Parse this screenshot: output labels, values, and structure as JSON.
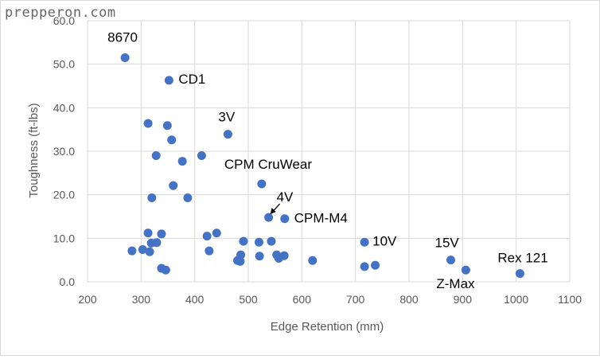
{
  "watermark": "prepperon.com",
  "chart_data": {
    "type": "scatter",
    "title": "",
    "xlabel": "Edge Retention (mm)",
    "ylabel": "Toughness (ft-lbs)",
    "xlim": [
      200,
      1100
    ],
    "ylim": [
      0,
      60
    ],
    "x_ticks": [
      "200",
      "300",
      "400",
      "500",
      "600",
      "700",
      "800",
      "900",
      "1000",
      "1100"
    ],
    "y_ticks": [
      "0.0",
      "10.0",
      "20.0",
      "30.0",
      "40.0",
      "50.0",
      "60.0"
    ],
    "grid": true,
    "legend": "none",
    "marker_color": "#4472c4",
    "points": [
      {
        "x": 270,
        "y": 51.5,
        "label": "8670"
      },
      {
        "x": 352,
        "y": 46.3,
        "label": "CD1"
      },
      {
        "x": 313,
        "y": 36.4
      },
      {
        "x": 349,
        "y": 35.9
      },
      {
        "x": 357,
        "y": 32.6
      },
      {
        "x": 462,
        "y": 33.9,
        "label": "3V"
      },
      {
        "x": 328,
        "y": 29.0
      },
      {
        "x": 413,
        "y": 29.0
      },
      {
        "x": 377,
        "y": 27.7
      },
      {
        "x": 360,
        "y": 22.1
      },
      {
        "x": 525,
        "y": 22.5,
        "label": "CPM CruWear"
      },
      {
        "x": 320,
        "y": 19.3
      },
      {
        "x": 387,
        "y": 19.3
      },
      {
        "x": 538,
        "y": 14.8,
        "label": "4V"
      },
      {
        "x": 568,
        "y": 14.5,
        "label": "CPM-M4"
      },
      {
        "x": 313,
        "y": 11.2
      },
      {
        "x": 338,
        "y": 11.0
      },
      {
        "x": 441,
        "y": 11.2
      },
      {
        "x": 423,
        "y": 10.5
      },
      {
        "x": 319,
        "y": 8.9
      },
      {
        "x": 329,
        "y": 9.0
      },
      {
        "x": 491,
        "y": 9.3
      },
      {
        "x": 520,
        "y": 9.1
      },
      {
        "x": 543,
        "y": 9.3
      },
      {
        "x": 717,
        "y": 9.1,
        "label": "10V"
      },
      {
        "x": 283,
        "y": 7.1
      },
      {
        "x": 303,
        "y": 7.4
      },
      {
        "x": 316,
        "y": 6.9
      },
      {
        "x": 427,
        "y": 7.1
      },
      {
        "x": 486,
        "y": 6.2
      },
      {
        "x": 521,
        "y": 5.9
      },
      {
        "x": 553,
        "y": 6.2
      },
      {
        "x": 567,
        "y": 6.0
      },
      {
        "x": 557,
        "y": 5.4
      },
      {
        "x": 480,
        "y": 4.9
      },
      {
        "x": 485,
        "y": 4.7
      },
      {
        "x": 620,
        "y": 4.9
      },
      {
        "x": 878,
        "y": 5.0,
        "label": "15V"
      },
      {
        "x": 338,
        "y": 3.1
      },
      {
        "x": 346,
        "y": 2.7
      },
      {
        "x": 717,
        "y": 3.5
      },
      {
        "x": 737,
        "y": 3.8
      },
      {
        "x": 906,
        "y": 2.7,
        "label": "Z-Max"
      },
      {
        "x": 1007,
        "y": 1.9,
        "label": "Rex 121"
      }
    ]
  }
}
